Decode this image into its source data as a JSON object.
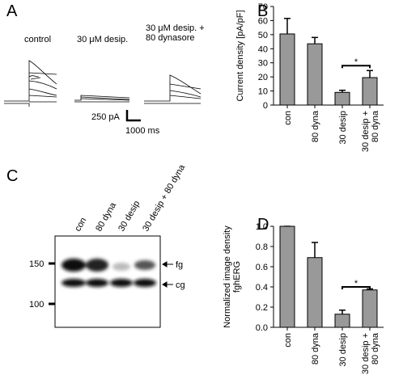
{
  "chart_data": [
    {
      "type": "bar",
      "panel": "B",
      "ylabel": "Current density [pA/pF]",
      "categories": [
        "con",
        "80 dyna",
        "30 desip",
        "30 desip +\n80 dyna"
      ],
      "values": [
        50.5,
        43.5,
        9,
        19.5
      ],
      "errors": [
        11,
        4.5,
        1.5,
        5
      ],
      "color": "#999999",
      "ylim": [
        0,
        70
      ],
      "yticks": [
        0,
        10,
        20,
        30,
        40,
        50,
        60,
        70
      ],
      "annotation": "*"
    },
    {
      "type": "bar",
      "panel": "D",
      "ylabel": "Normalized image density\nfghERG",
      "categories": [
        "con",
        "80 dyna",
        "30 desip",
        "30 desip +\n80 dyna"
      ],
      "values": [
        1.0,
        0.69,
        0.13,
        0.37
      ],
      "errors": [
        0,
        0.15,
        0.04,
        0.01
      ],
      "color": "#999999",
      "ylim": [
        0,
        1.0
      ],
      "yticks": [
        {
          "value": 0,
          "label": "0.0"
        },
        {
          "value": 0.2,
          "label": "0.2"
        },
        {
          "value": 0.4,
          "label": "0.4"
        },
        {
          "value": 0.6,
          "label": "0.6"
        },
        {
          "value": 0.8,
          "label": "0.8"
        },
        {
          "value": 1.0,
          "label": "1.0"
        }
      ],
      "annotation": "*"
    }
  ],
  "panel_a": {
    "letter": "A",
    "conditions": [
      "control",
      "30 μM desip.",
      "30 μM desip. +\n80 dynasore"
    ],
    "scale_current": "250 pA",
    "scale_time": "1000 ms"
  },
  "panel_c": {
    "letter": "C",
    "lanes": [
      "con",
      "80 dyna",
      "30 desip",
      "30 desip + 80 dyna"
    ],
    "markers": [
      "150",
      "100"
    ],
    "bands": [
      "fg",
      "cg"
    ]
  }
}
